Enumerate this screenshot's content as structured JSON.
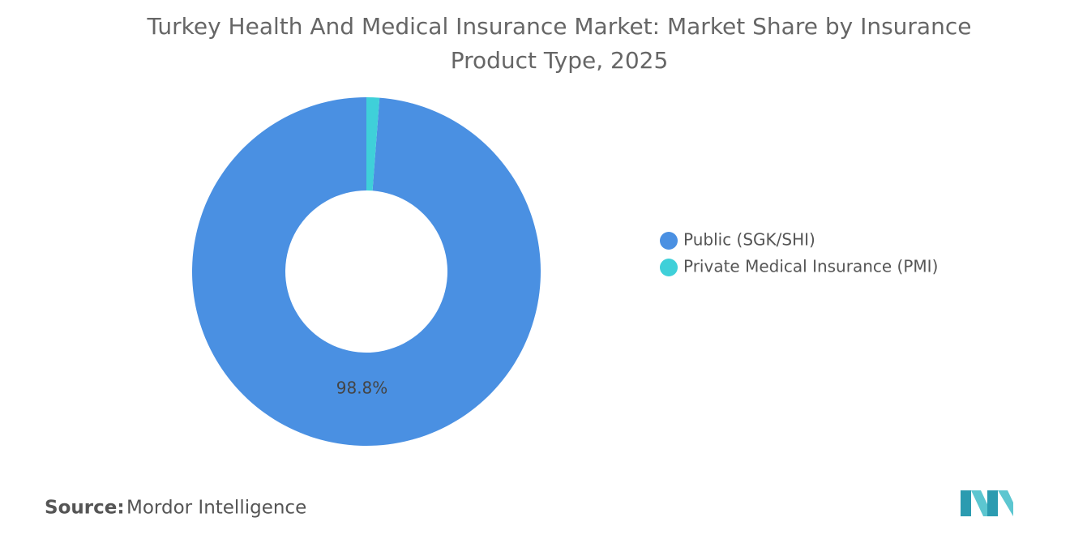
{
  "chart_data": {
    "type": "donut",
    "title": "Turkey Health And Medical Insurance Market: Market Share by Insurance Product Type, 2025",
    "categories": [
      "Public (SGK/SHI)",
      "Private Medical Insurance (PMI)"
    ],
    "values": [
      98.8,
      1.2
    ],
    "value_labels": [
      "98.8%",
      null
    ],
    "colors": [
      "#4a90e2",
      "#3fd0d9"
    ],
    "legend": "right",
    "source_label": "Source:",
    "source": "Mordor Intelligence"
  }
}
